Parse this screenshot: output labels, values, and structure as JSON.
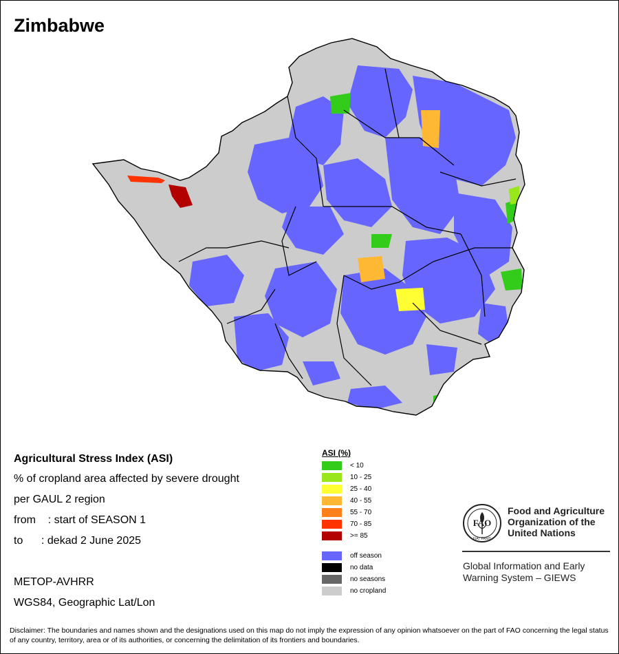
{
  "title": "Zimbabwe",
  "info": {
    "line1": "Agricultural Stress Index (ASI)",
    "line2": "% of cropland area affected by severe drought",
    "line3": "per GAUL 2 region",
    "line4": "from    : start of SEASON 1",
    "line5": "to      : dekad 2 June 2025",
    "sensor": "METOP-AVHRR",
    "projection": "WGS84, Geographic Lat/Lon"
  },
  "legend": {
    "title": "ASI (%)",
    "classes": [
      {
        "label": "< 10",
        "color": "#33cc1a"
      },
      {
        "label": "10 - 25",
        "color": "#99e61a"
      },
      {
        "label": "25 - 40",
        "color": "#ffff33"
      },
      {
        "label": "40 - 55",
        "color": "#ffb833"
      },
      {
        "label": "55 - 70",
        "color": "#ff801a"
      },
      {
        "label": "70 - 85",
        "color": "#ff3300"
      },
      {
        "label": ">= 85",
        "color": "#b30000"
      }
    ],
    "other": [
      {
        "label": "off season",
        "color": "#6666ff"
      },
      {
        "label": "no data",
        "color": "#000000"
      },
      {
        "label": "no seasons",
        "color": "#666666"
      },
      {
        "label": "no cropland",
        "color": "#cccccc"
      }
    ]
  },
  "org": {
    "logo_text": "FAO",
    "logo_motto": "FIAT PANIS",
    "name_line1": "Food and Agriculture",
    "name_line2": "Organization of the",
    "name_line3": "United Nations",
    "giews_line1": "Global Information and Early",
    "giews_line2": "Warning System – GIEWS"
  },
  "disclaimer": "Disclaimer: The boundaries and names shown and the designations used on this map do not imply the expression of any opinion whatsoever on the part of FAO concerning the legal status of any country, territory, area or of its authorities, or concerning the delimitation of its frontiers and boundaries."
}
